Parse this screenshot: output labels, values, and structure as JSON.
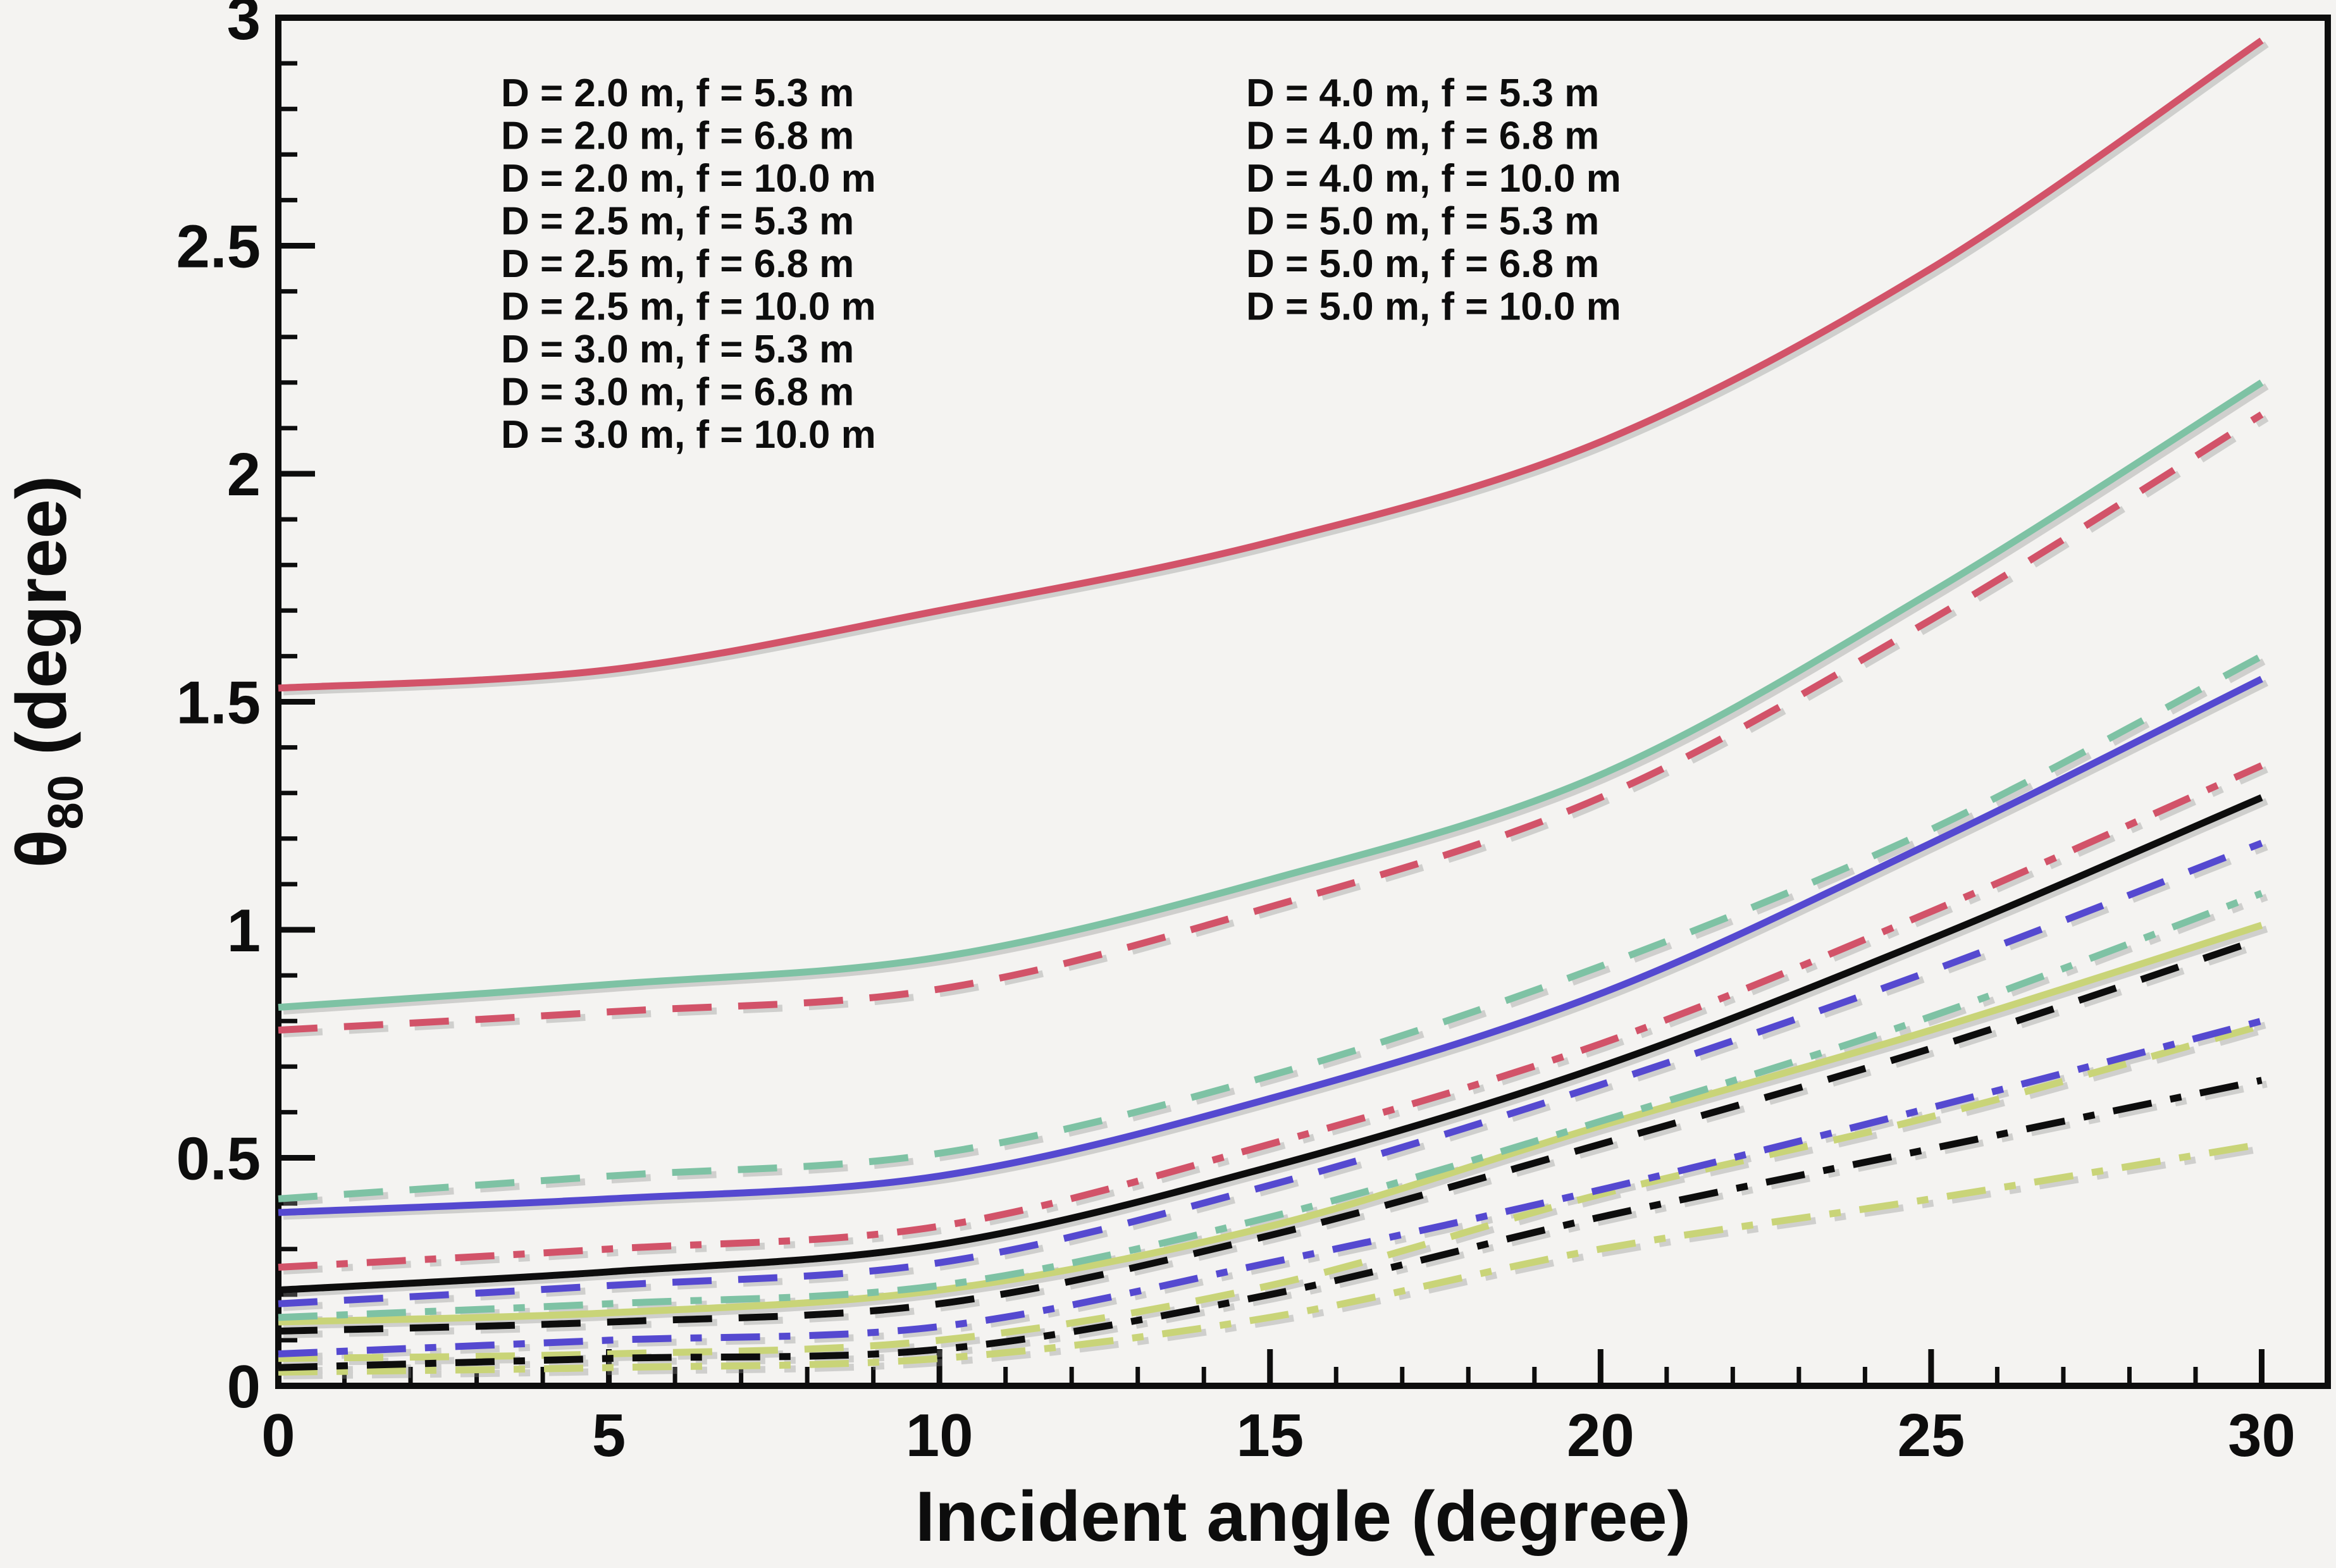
{
  "figure": {
    "background": "#f4f3f1",
    "frame_color": "#0d0d0d"
  },
  "chart_data": {
    "type": "line",
    "title": "",
    "xlabel": "Incident angle (degree)",
    "ylabel_prefix": "θ",
    "ylabel_sub": "80",
    "ylabel_suffix": " (degree)",
    "xlim": [
      0,
      31
    ],
    "ylim": [
      0,
      3
    ],
    "xticks": [
      0,
      5,
      10,
      15,
      20,
      25,
      30
    ],
    "yticks": [
      "0",
      "0.5",
      "1",
      "1.5",
      "2",
      "2.5",
      "3"
    ],
    "ytick_values": [
      0,
      0.5,
      1,
      1.5,
      2,
      2.5,
      3
    ],
    "x_minor_step": 1,
    "y_minor_step": 0.1,
    "grid": false,
    "legend_position": "top-left-two-columns",
    "x": [
      0,
      5,
      10,
      15,
      20,
      25,
      30
    ],
    "series": [
      {
        "label": "D = 2.0 m, f = 5.3 m",
        "D": 2.0,
        "f": 5.3,
        "color": "#c9d478",
        "style": "solid",
        "values": [
          0.14,
          0.16,
          0.21,
          0.35,
          0.57,
          0.78,
          1.01
        ]
      },
      {
        "label": "D = 2.0 m, f = 6.8 m",
        "D": 2.0,
        "f": 6.8,
        "color": "#c9d478",
        "style": "dashed",
        "values": [
          0.06,
          0.07,
          0.1,
          0.22,
          0.42,
          0.59,
          0.79
        ]
      },
      {
        "label": "D = 2.0 m, f = 10.0 m",
        "D": 2.0,
        "f": 10.0,
        "color": "#c9d478",
        "style": "dashdot",
        "values": [
          0.03,
          0.04,
          0.06,
          0.15,
          0.3,
          0.41,
          0.53
        ]
      },
      {
        "label": "D = 2.5 m, f = 5.3 m",
        "D": 2.5,
        "f": 5.3,
        "color": "#0d0d0d",
        "style": "solid",
        "values": [
          0.21,
          0.25,
          0.31,
          0.48,
          0.7,
          0.98,
          1.29
        ]
      },
      {
        "label": "D = 2.5 m, f = 6.8 m",
        "D": 2.5,
        "f": 6.8,
        "color": "#0d0d0d",
        "style": "dashed",
        "values": [
          0.12,
          0.14,
          0.18,
          0.33,
          0.53,
          0.74,
          0.98
        ]
      },
      {
        "label": "D = 2.5 m, f = 10.0 m",
        "D": 2.5,
        "f": 10.0,
        "color": "#0d0d0d",
        "style": "dashdot",
        "values": [
          0.04,
          0.06,
          0.08,
          0.2,
          0.37,
          0.52,
          0.67
        ]
      },
      {
        "label": "D = 3.0 m, f = 5.3 m",
        "D": 3.0,
        "f": 5.3,
        "color": "#5449d0",
        "style": "solid",
        "values": [
          0.38,
          0.41,
          0.46,
          0.63,
          0.86,
          1.19,
          1.55
        ]
      },
      {
        "label": "D = 3.0 m, f = 6.8 m",
        "D": 3.0,
        "f": 6.8,
        "color": "#5449d0",
        "style": "dashed",
        "values": [
          0.18,
          0.22,
          0.27,
          0.44,
          0.66,
          0.91,
          1.19
        ]
      },
      {
        "label": "D = 3.0 m, f = 10.0 m",
        "D": 3.0,
        "f": 10.0,
        "color": "#5449d0",
        "style": "dashdot",
        "values": [
          0.07,
          0.1,
          0.13,
          0.27,
          0.43,
          0.61,
          0.8
        ]
      },
      {
        "label": "D = 4.0 m, f = 5.3 m",
        "D": 4.0,
        "f": 5.3,
        "color": "#7ec2a4",
        "style": "solid",
        "values": [
          0.83,
          0.88,
          0.94,
          1.11,
          1.34,
          1.74,
          2.2
        ]
      },
      {
        "label": "D = 4.0 m, f = 6.8 m",
        "D": 4.0,
        "f": 6.8,
        "color": "#7ec2a4",
        "style": "dashed",
        "values": [
          0.41,
          0.46,
          0.51,
          0.68,
          0.92,
          1.22,
          1.6
        ]
      },
      {
        "label": "D = 4.0 m, f = 10.0 m",
        "D": 4.0,
        "f": 10.0,
        "color": "#7ec2a4",
        "style": "dashdot",
        "values": [
          0.15,
          0.18,
          0.22,
          0.37,
          0.58,
          0.81,
          1.08
        ]
      },
      {
        "label": "D = 5.0 m, f = 5.3 m",
        "D": 5.0,
        "f": 5.3,
        "color": "#d25269",
        "style": "solid",
        "values": [
          1.53,
          1.57,
          1.7,
          1.85,
          2.07,
          2.45,
          2.95
        ]
      },
      {
        "label": "D = 5.0 m, f = 6.8 m",
        "D": 5.0,
        "f": 6.8,
        "color": "#d25269",
        "style": "dashed",
        "values": [
          0.78,
          0.82,
          0.87,
          1.05,
          1.29,
          1.68,
          2.13
        ]
      },
      {
        "label": "D = 5.0 m, f = 10.0 m",
        "D": 5.0,
        "f": 10.0,
        "color": "#d25269",
        "style": "dashdot",
        "values": [
          0.26,
          0.3,
          0.35,
          0.53,
          0.75,
          1.04,
          1.36
        ]
      }
    ],
    "legend_columns": [
      [
        0,
        1,
        2,
        3,
        4,
        5,
        6,
        7,
        8
      ],
      [
        9,
        10,
        11,
        12,
        13,
        14
      ]
    ]
  }
}
